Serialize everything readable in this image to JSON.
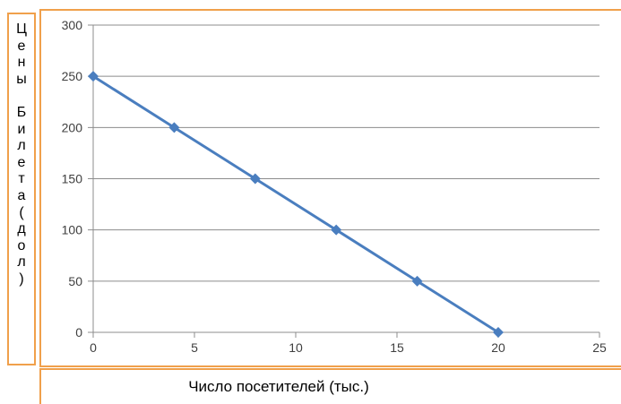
{
  "chart_data": {
    "type": "line",
    "x": [
      0,
      4,
      8,
      12,
      16,
      20
    ],
    "series": [
      {
        "values": [
          250,
          200,
          150,
          100,
          50,
          0
        ],
        "color": "#4a7ebf",
        "marker": "diamond"
      }
    ],
    "xlabel": "Число посетителей (тыс.)",
    "ylabel_chars": [
      "Ц",
      "е",
      "н",
      "ы",
      "",
      "Б",
      "и",
      "л",
      "е",
      "т",
      "а",
      "(",
      "д",
      "о",
      "л",
      ")"
    ],
    "xlim": [
      0,
      25
    ],
    "ylim": [
      0,
      300
    ],
    "xticks": [
      0,
      5,
      10,
      15,
      20,
      25
    ],
    "yticks": [
      0,
      50,
      100,
      150,
      200,
      250,
      300
    ],
    "grid": "horizontal",
    "accent_border_color": "#f0a04b"
  }
}
